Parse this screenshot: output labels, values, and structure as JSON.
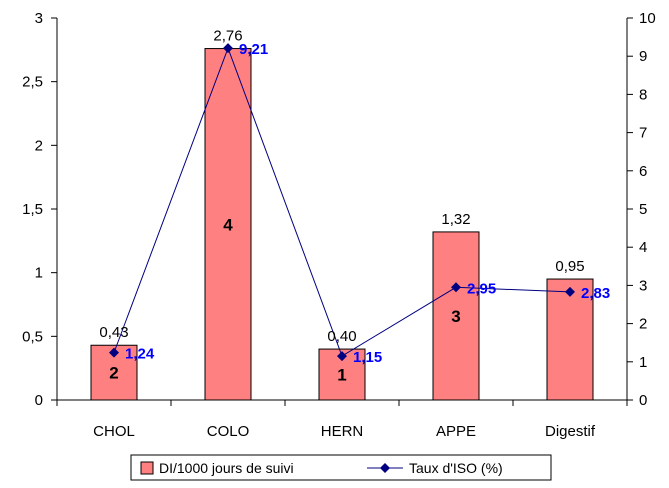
{
  "chart_data": {
    "type": "bar",
    "categories": [
      "CHOL",
      "COLO",
      "HERN",
      "APPE",
      "Digestif"
    ],
    "series": [
      {
        "name": "DI/1000 jours de suivi",
        "kind": "bar",
        "axis": "left",
        "values": [
          0.43,
          2.76,
          0.4,
          1.32,
          0.95
        ],
        "labels": [
          "0,43",
          "2,76",
          "0,40",
          "1,32",
          "0,95"
        ],
        "color": "#ff8080"
      },
      {
        "name": "Taux d'ISO (%)",
        "kind": "line",
        "axis": "right",
        "values": [
          1.24,
          9.21,
          1.15,
          2.95,
          2.83
        ],
        "labels": [
          "1,24",
          "9,21",
          "1,15",
          "2,95",
          "2,83"
        ],
        "color": "#000080",
        "label_color": "#0000ff"
      }
    ],
    "rank_labels": [
      "2",
      "4",
      "1",
      "3",
      ""
    ],
    "left_axis": {
      "ylim": [
        0,
        3
      ],
      "ticks": [
        "0",
        "0,5",
        "1",
        "1,5",
        "2",
        "2,5",
        "3"
      ]
    },
    "right_axis": {
      "ylim": [
        0,
        10
      ],
      "ticks": [
        "0",
        "1",
        "2",
        "3",
        "4",
        "5",
        "6",
        "7",
        "8",
        "9",
        "10"
      ]
    },
    "grid": false,
    "legend_position": "bottom"
  }
}
